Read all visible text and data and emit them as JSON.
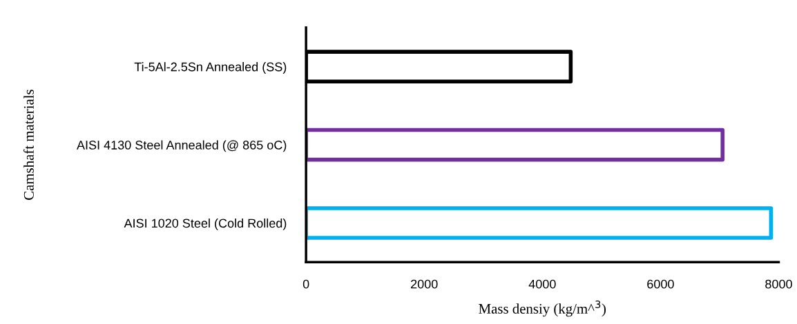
{
  "chart_data": {
    "type": "bar",
    "orientation": "horizontal",
    "categories": [
      "Ti-5Al-2.5Sn Annealed (SS)",
      "AISI 4130 Steel Annealed (@ 865 oC)",
      "AISI 1020 Steel (Cold Rolled)"
    ],
    "values": [
      4480,
      7050,
      7870
    ],
    "colors": [
      "#000000",
      "#7030a0",
      "#00b0f0"
    ],
    "xlabel": "Mass densiy (kg/m^$^{3}$)",
    "ylabel": "Camshaft materials",
    "xlim": [
      0,
      8000
    ],
    "xticks": [
      0,
      2000,
      4000,
      6000,
      8000
    ],
    "grid": false,
    "legend": false
  }
}
